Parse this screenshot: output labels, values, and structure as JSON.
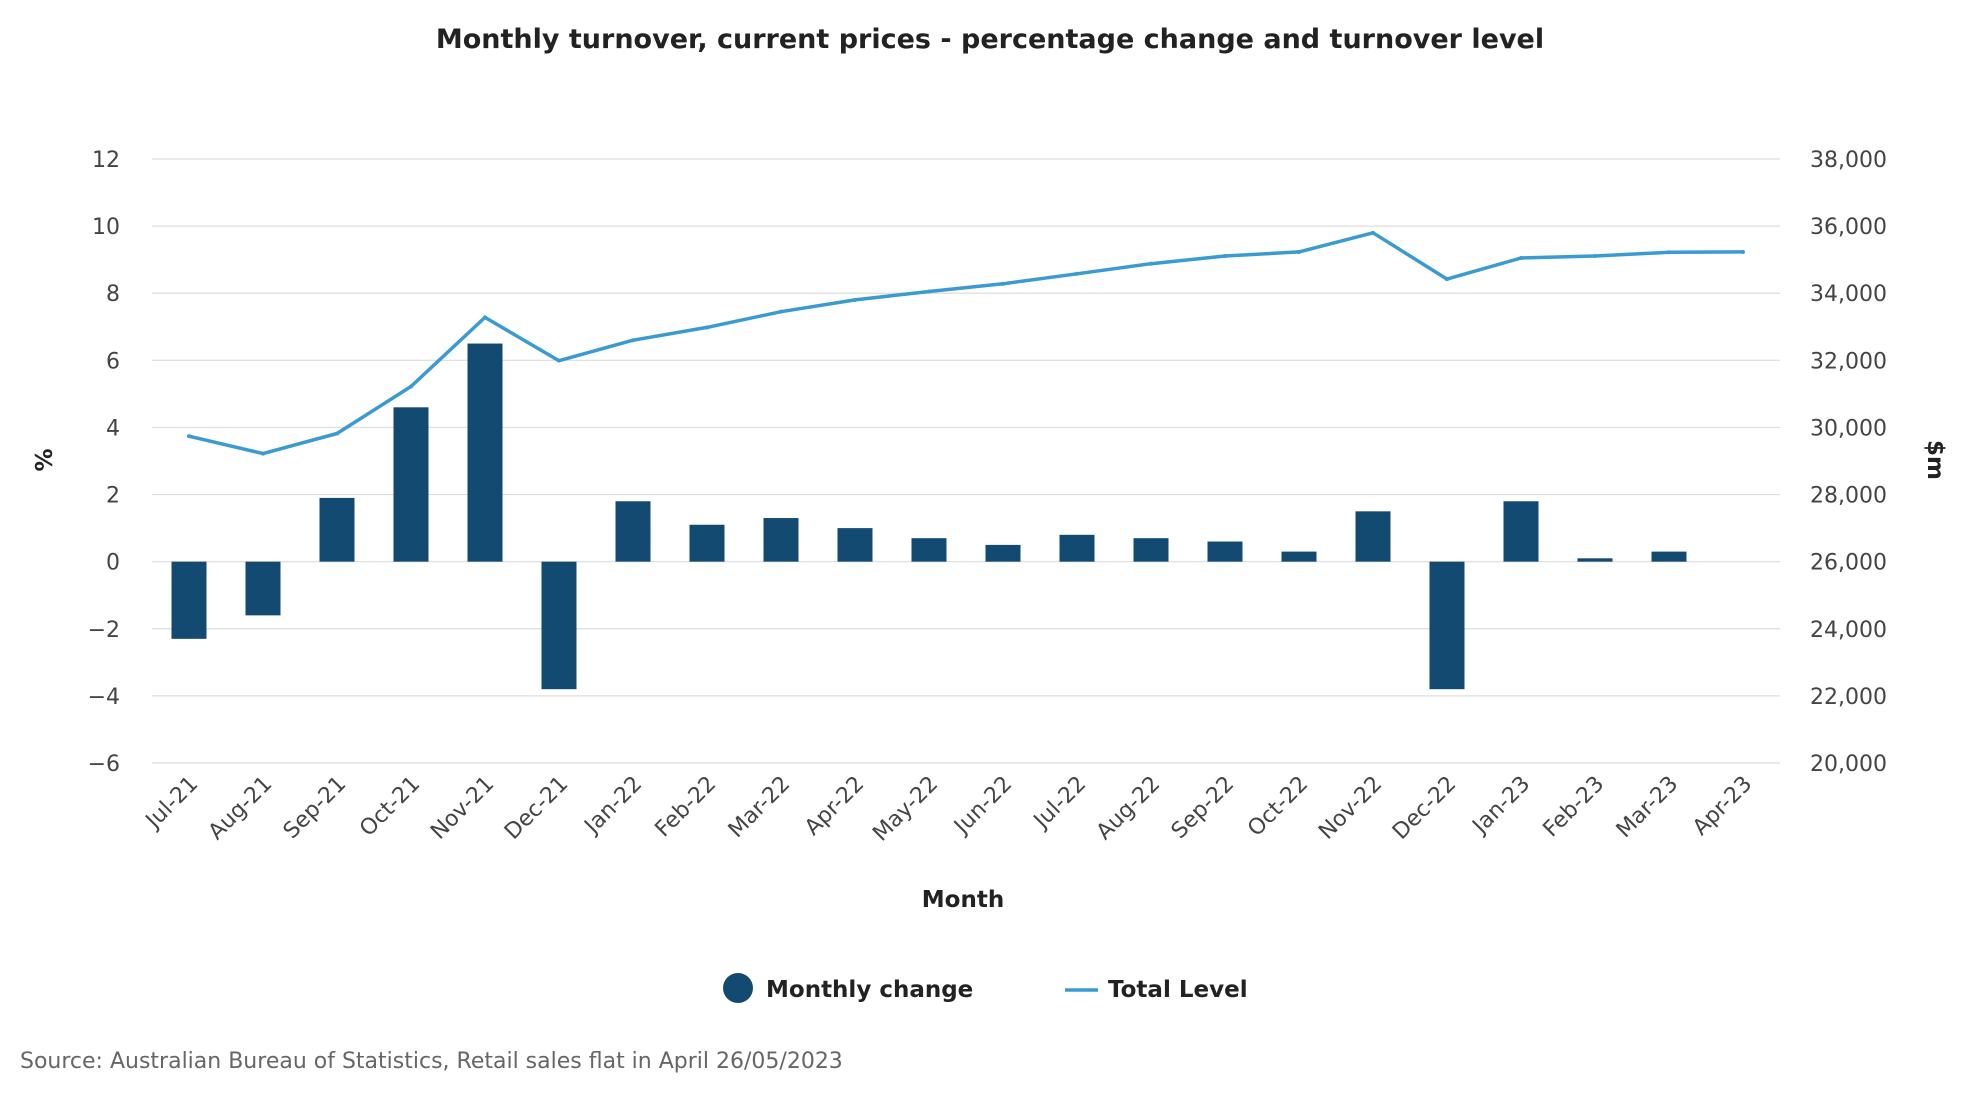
{
  "colors": {
    "bar": "#134a72",
    "line": "#3a9ad2",
    "grid": "#dddddd"
  },
  "legend": {
    "monthly_change": "Monthly change",
    "total_level": "Total Level"
  },
  "source": "Source: Australian Bureau of Statistics, Retail sales flat in April 26/05/2023",
  "chart_data": {
    "type": "bar+line",
    "title": "Monthly turnover, current prices - percentage change and turnover level",
    "xlabel": "Month",
    "ylabel": "%",
    "y2label": "$m",
    "ylim": [
      -6,
      12
    ],
    "y2lim": [
      20000,
      38000
    ],
    "yticks": [
      "12",
      "10",
      "8",
      "6",
      "4",
      "2",
      "0",
      "−2",
      "−4",
      "−6"
    ],
    "y2ticks": [
      "38,000",
      "36,000",
      "34,000",
      "32,000",
      "30,000",
      "28,000",
      "26,000",
      "24,000",
      "22,000",
      "20,000"
    ],
    "categories": [
      "Jul-21",
      "Aug-21",
      "Sep-21",
      "Oct-21",
      "Nov-21",
      "Dec-21",
      "Jan-22",
      "Feb-22",
      "Mar-22",
      "Apr-22",
      "May-22",
      "Jun-22",
      "Jul-22",
      "Aug-22",
      "Sep-22",
      "Oct-22",
      "Nov-22",
      "Dec-22",
      "Jan-23",
      "Feb-23",
      "Mar-23",
      "Apr-23"
    ],
    "series": [
      {
        "name": "Monthly change",
        "type": "bar",
        "axis": "left",
        "values": [
          -2.3,
          -1.6,
          1.9,
          4.6,
          6.5,
          -3.8,
          1.8,
          1.1,
          1.3,
          1.0,
          0.7,
          0.5,
          0.8,
          0.7,
          0.6,
          0.3,
          1.5,
          -3.8,
          1.8,
          0.1,
          0.3,
          0.0
        ]
      },
      {
        "name": "Total Level",
        "type": "line",
        "axis": "right",
        "values": [
          29740,
          29220,
          29820,
          31220,
          33280,
          31990,
          32600,
          32980,
          33450,
          33800,
          34050,
          34280,
          34580,
          34880,
          35110,
          35230,
          35800,
          34420,
          35050,
          35110,
          35220,
          35230
        ]
      }
    ]
  }
}
